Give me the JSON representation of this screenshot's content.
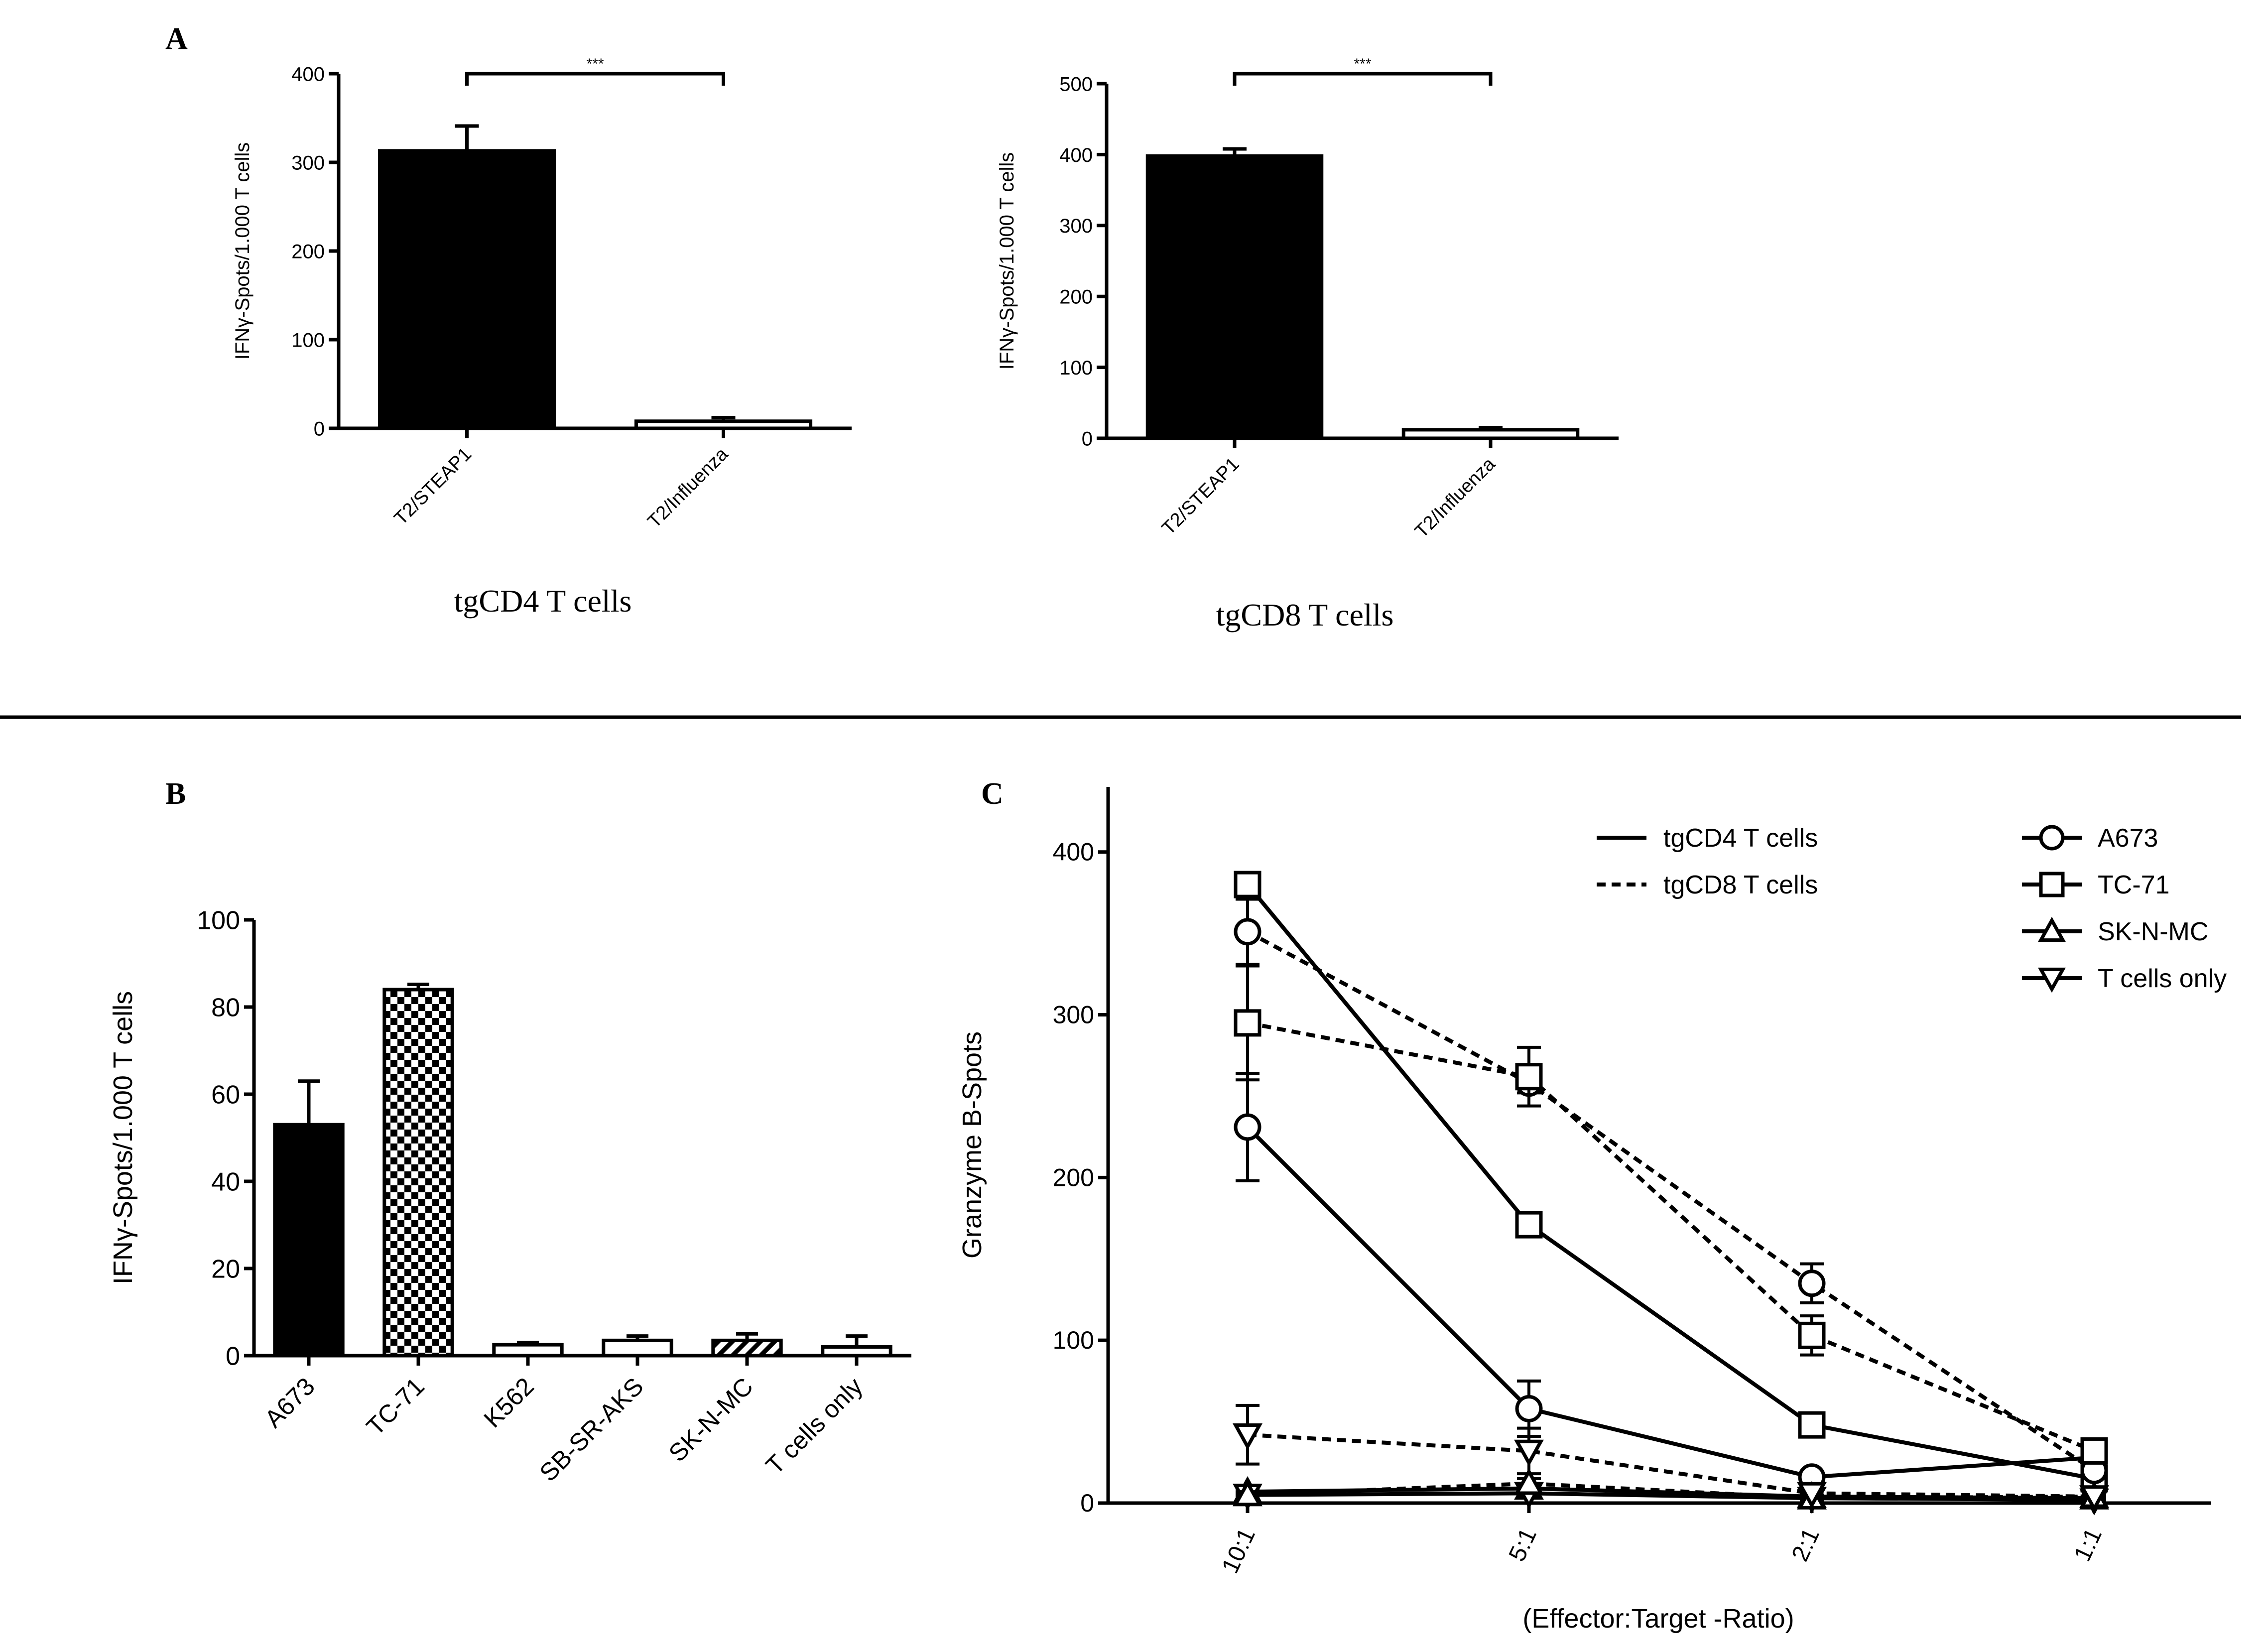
{
  "figure": {
    "panel_labels": {
      "a": "A",
      "b": "B",
      "c": "C"
    }
  },
  "chart_data": [
    {
      "id": "a1",
      "type": "bar",
      "panel": "A",
      "title": "",
      "ylabel": "IFNγ-Spots/1.000 T cells",
      "xlabel": "tgCD4 T cells",
      "ylim": [
        0,
        400
      ],
      "yticks": [
        0,
        100,
        200,
        300,
        400
      ],
      "categories": [
        "T2/STEAP1",
        "T2/Influenza"
      ],
      "values": [
        313,
        8
      ],
      "errors": [
        28,
        4
      ],
      "fills": [
        "solid",
        "white"
      ],
      "significance": {
        "from": 0,
        "to": 1,
        "label": "***"
      }
    },
    {
      "id": "a2",
      "type": "bar",
      "panel": "A",
      "title": "",
      "ylabel": "IFNγ-Spots/1.000 T cells",
      "xlabel": "tgCD8 T cells",
      "ylim": [
        0,
        500
      ],
      "yticks": [
        0,
        100,
        200,
        300,
        400,
        500
      ],
      "categories": [
        "T2/STEAP1",
        "T2/Influenza"
      ],
      "values": [
        398,
        12
      ],
      "errors": [
        10,
        3
      ],
      "fills": [
        "solid",
        "white"
      ],
      "significance": {
        "from": 0,
        "to": 1,
        "label": "***"
      }
    },
    {
      "id": "b",
      "type": "bar",
      "panel": "B",
      "title": "",
      "ylabel": "IFNγ-Spots/1.000 T cells",
      "xlabel": "",
      "ylim": [
        0,
        100
      ],
      "yticks": [
        0,
        20,
        40,
        60,
        80,
        100
      ],
      "categories": [
        "A673",
        "TC-71",
        "K562",
        "SB-SR-AKS",
        "SK-N-MC",
        "T cells only"
      ],
      "values": [
        53,
        84,
        2.5,
        3.5,
        3.5,
        2
      ],
      "errors": [
        10,
        1.2,
        0.5,
        1,
        1.5,
        2.5
      ],
      "fills": [
        "solid",
        "checker",
        "white",
        "white",
        "hatch",
        "white"
      ]
    },
    {
      "id": "c",
      "type": "line",
      "panel": "C",
      "title": "",
      "ylabel": "Granzyme B-Spots",
      "xlabel": "(Effector:Target -Ratio)",
      "categories": [
        "10:1",
        "5:1",
        "2:1",
        "1:1"
      ],
      "ylim": [
        0,
        440
      ],
      "yticks": [
        0,
        100,
        200,
        300,
        400
      ],
      "legend_lines": [
        {
          "label": "tgCD4 T cells",
          "style": "solid"
        },
        {
          "label": "tgCD8 T cells",
          "style": "dotted"
        }
      ],
      "legend_markers": [
        {
          "label": "A673",
          "marker": "circle"
        },
        {
          "label": "TC-71",
          "marker": "square"
        },
        {
          "label": "SK-N-MC",
          "marker": "triangle-up"
        },
        {
          "label": "T cells only",
          "marker": "triangle-down"
        }
      ],
      "series": [
        {
          "name": "A673 tgCD4",
          "marker": "circle",
          "style": "solid",
          "values": [
            231,
            58,
            16,
            28
          ],
          "errors": [
            33,
            17,
            3,
            3
          ]
        },
        {
          "name": "TC-71 tgCD4",
          "marker": "square",
          "style": "solid",
          "values": [
            380,
            171,
            48,
            15
          ],
          "errors": [
            0,
            0,
            0,
            0
          ]
        },
        {
          "name": "SK-N-MC tgCD4",
          "marker": "triangle-up",
          "style": "solid",
          "values": [
            7,
            9,
            4,
            3
          ],
          "errors": [
            2,
            3,
            1,
            1
          ]
        },
        {
          "name": "T cells only tgCD4",
          "marker": "triangle-down",
          "style": "solid",
          "values": [
            5,
            6,
            3,
            2
          ],
          "errors": [
            1,
            2,
            1,
            1
          ]
        },
        {
          "name": "A673 tgCD8",
          "marker": "circle",
          "style": "dotted",
          "values": [
            351,
            258,
            135,
            20
          ],
          "errors": [
            20,
            6,
            12,
            3
          ]
        },
        {
          "name": "TC-71 tgCD8",
          "marker": "square",
          "style": "dotted",
          "values": [
            295,
            262,
            103,
            32
          ],
          "errors": [
            35,
            18,
            12,
            4
          ]
        },
        {
          "name": "SK-N-MC tgCD8",
          "marker": "triangle-up",
          "style": "dotted",
          "values": [
            5,
            12,
            3,
            4
          ],
          "errors": [
            2,
            3,
            1,
            1
          ]
        },
        {
          "name": "T cells only tgCD8",
          "marker": "triangle-down",
          "style": "dotted",
          "values": [
            42,
            32,
            6,
            4
          ],
          "errors": [
            18,
            14,
            2,
            1
          ]
        }
      ]
    }
  ]
}
